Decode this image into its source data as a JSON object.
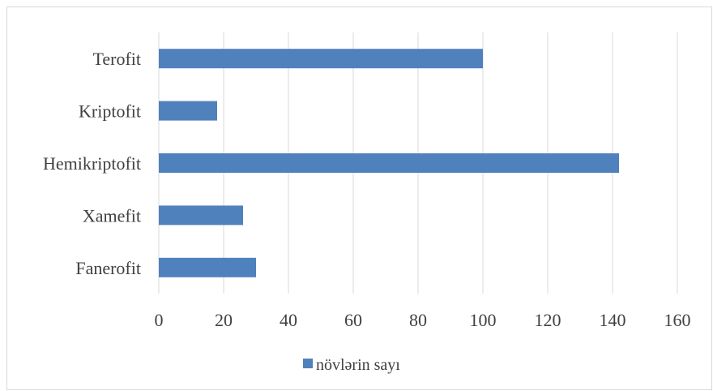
{
  "chart_data": {
    "type": "bar",
    "orientation": "horizontal",
    "categories": [
      "Terofit",
      "Kriptofit",
      "Hemikriptofit",
      "Xamefit",
      "Fanerofit"
    ],
    "series": [
      {
        "name": "növlərin sayı",
        "values": [
          100,
          18,
          142,
          26,
          30
        ]
      }
    ],
    "xlim": [
      0,
      160
    ],
    "x_ticks": [
      "0",
      "20",
      "40",
      "60",
      "80",
      "100",
      "120",
      "140",
      "160"
    ],
    "grid": "vertical",
    "legend_position": "bottom",
    "bar_color": "#4f81bd",
    "grid_color": "#d9d9d9"
  }
}
